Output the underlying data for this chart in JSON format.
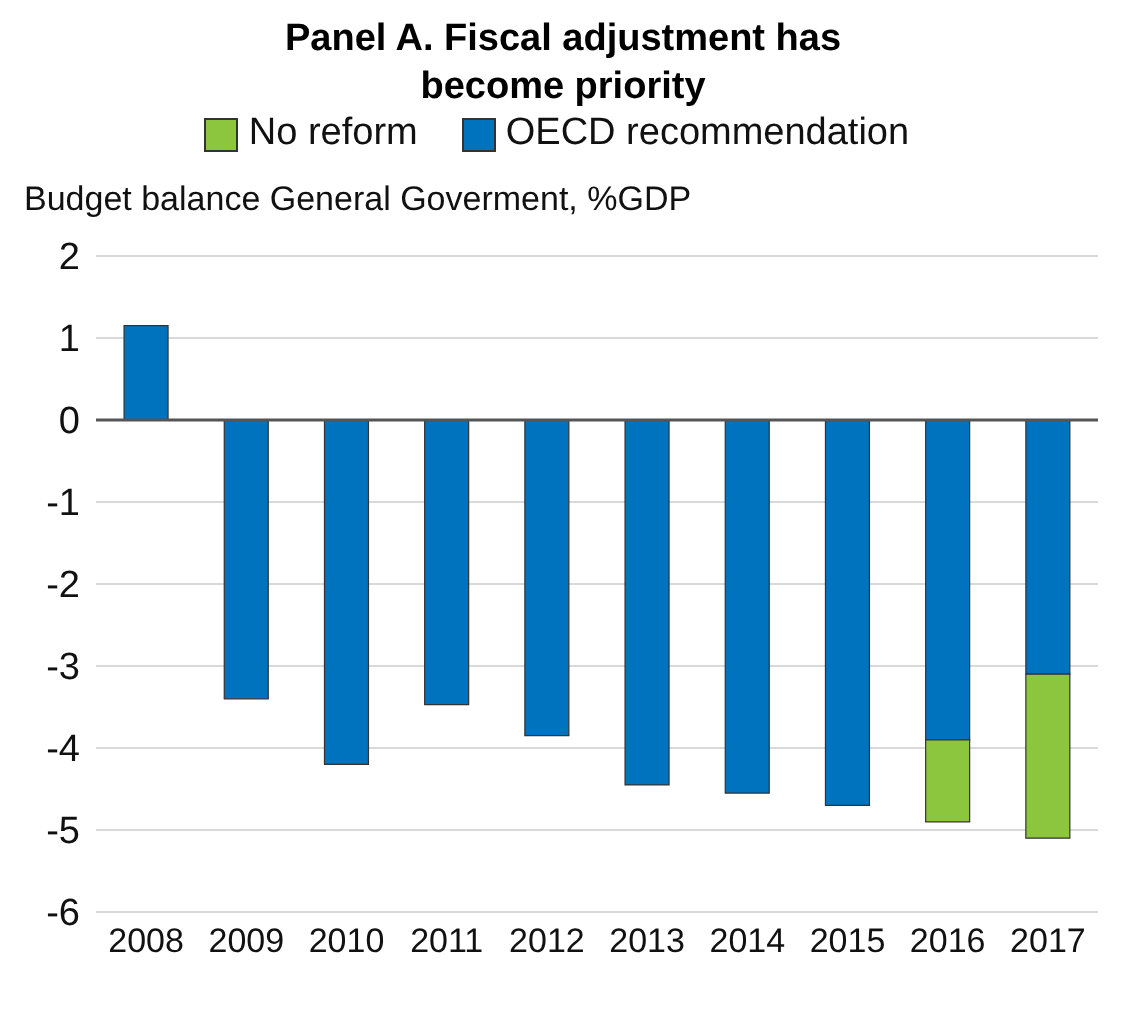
{
  "chart_data": {
    "type": "bar",
    "title": "Panel A. Fiscal adjustment has become priority",
    "ylabel": "Budget balance General Goverment, %GDP",
    "categories": [
      "2008",
      "2009",
      "2010",
      "2011",
      "2012",
      "2013",
      "2014",
      "2015",
      "2016",
      "2017"
    ],
    "stacked": true,
    "series": [
      {
        "name": "OECD recommendation",
        "color": "#0073be",
        "values": [
          1.15,
          -3.4,
          -4.2,
          -3.47,
          -3.85,
          -4.45,
          -4.55,
          -4.7,
          -3.9,
          -3.1
        ]
      },
      {
        "name": "No reform",
        "color": "#8cc63f",
        "values": [
          null,
          null,
          null,
          null,
          null,
          null,
          null,
          null,
          -1.0,
          -2.0
        ]
      }
    ],
    "ylim": [
      -6,
      2
    ],
    "yticks": [
      -6,
      -5,
      -4,
      -3,
      -2,
      -1,
      0,
      1,
      2
    ],
    "grid": "y",
    "legend": "top"
  }
}
